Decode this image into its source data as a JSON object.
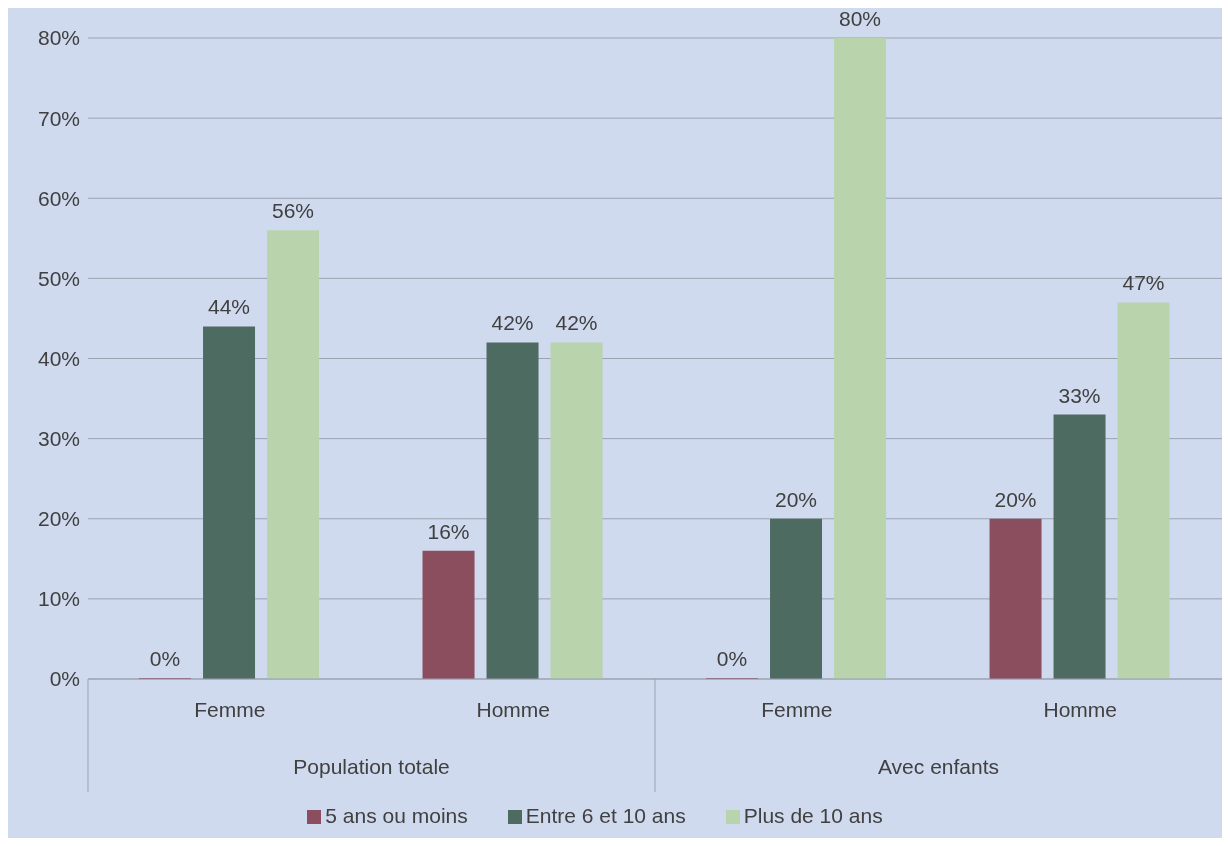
{
  "chart_data": {
    "type": "bar",
    "categories": [
      "Femme",
      "Homme",
      "Femme",
      "Homme"
    ],
    "annotations": [
      "Population totale",
      "Avec enfants"
    ],
    "series": [
      {
        "name": "5 ans ou moins",
        "color": "#8b4e5e",
        "values": [
          0,
          16,
          0,
          20
        ],
        "value_labels": [
          "0%",
          "16%",
          "0%",
          "20%"
        ]
      },
      {
        "name": "Entre 6 et 10 ans",
        "color": "#4e6b62",
        "values": [
          44,
          42,
          20,
          33
        ],
        "value_labels": [
          "44%",
          "42%",
          "20%",
          "33%"
        ]
      },
      {
        "name": "Plus de 10 ans",
        "color": "#b9d4ad",
        "values": [
          56,
          42,
          80,
          47
        ],
        "value_labels": [
          "56%",
          "42%",
          "80%",
          "47%"
        ]
      }
    ],
    "ylim": [
      0,
      80
    ],
    "yticks": [
      {
        "value": 0,
        "label": "0%"
      },
      {
        "value": 10,
        "label": "10%"
      },
      {
        "value": 20,
        "label": "20%"
      },
      {
        "value": 30,
        "label": "30%"
      },
      {
        "value": 40,
        "label": "40%"
      },
      {
        "value": 50,
        "label": "50%"
      },
      {
        "value": 60,
        "label": "60%"
      },
      {
        "value": 70,
        "label": "70%"
      },
      {
        "value": 80,
        "label": "80%"
      }
    ],
    "grid": "y",
    "legend": "bottom"
  }
}
